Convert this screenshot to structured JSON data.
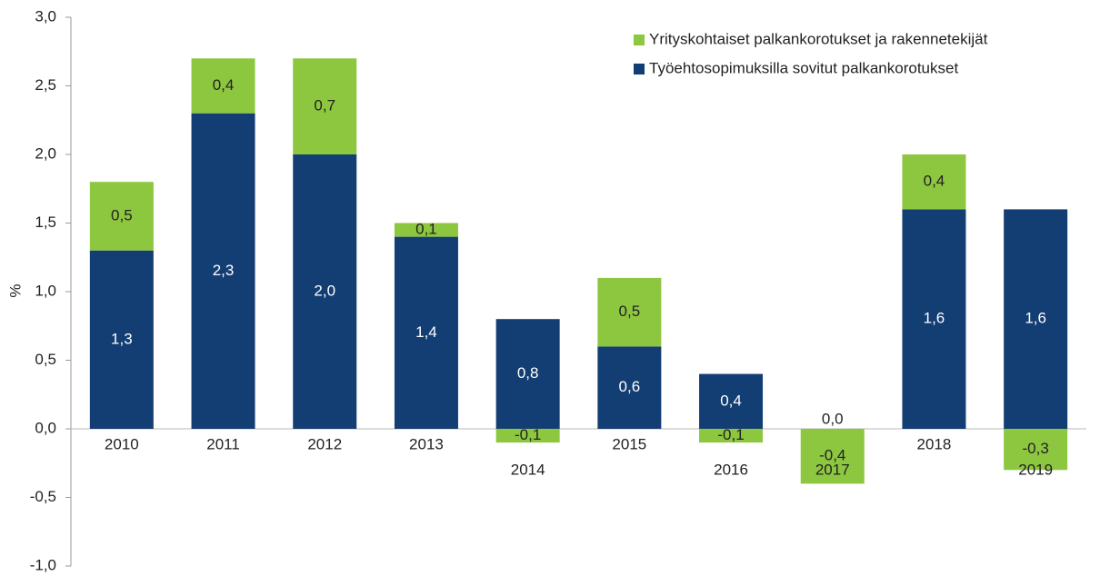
{
  "chart_data": {
    "type": "stacked_bar",
    "y_label": "%",
    "categories": [
      "2010",
      "2011",
      "2012",
      "2013",
      "2014",
      "2015",
      "2016",
      "2017",
      "2018",
      "2019"
    ],
    "series": [
      {
        "name": "Työehtosopimuksilla sovitut palkankorotukset",
        "color": "#133e73",
        "values": [
          1.3,
          2.3,
          2.0,
          1.4,
          0.8,
          0.6,
          0.4,
          0.0,
          1.6,
          1.6
        ],
        "value_labels": [
          "1,3",
          "2,3",
          "2,0",
          "1,4",
          "0,8",
          "0,6",
          "0,4",
          "0,0",
          "1,6",
          "1,6"
        ]
      },
      {
        "name": "Yrityskohtaiset palkankorotukset ja rakennetekijät",
        "color": "#8dc63f",
        "values": [
          0.5,
          0.4,
          0.7,
          0.1,
          -0.1,
          0.5,
          -0.1,
          -0.4,
          0.4,
          -0.3
        ],
        "value_labels": [
          "0,5",
          "0,4",
          "0,7",
          "0,1",
          "-0,1",
          "0,5",
          "-0,1",
          "-0,4",
          "0,4",
          "-0,3"
        ]
      }
    ],
    "ylim": [
      -1.0,
      3.0
    ],
    "yticks": [
      {
        "value": -1.0,
        "label": "-1,0"
      },
      {
        "value": -0.5,
        "label": "-0,5"
      },
      {
        "value": 0.0,
        "label": "0,0"
      },
      {
        "value": 0.5,
        "label": "0,5"
      },
      {
        "value": 1.0,
        "label": "1,0"
      },
      {
        "value": 1.5,
        "label": "1,5"
      },
      {
        "value": 2.0,
        "label": "2,0"
      },
      {
        "value": 2.5,
        "label": "2,5"
      },
      {
        "value": 3.0,
        "label": "3,0"
      }
    ],
    "legend": "top-right"
  }
}
